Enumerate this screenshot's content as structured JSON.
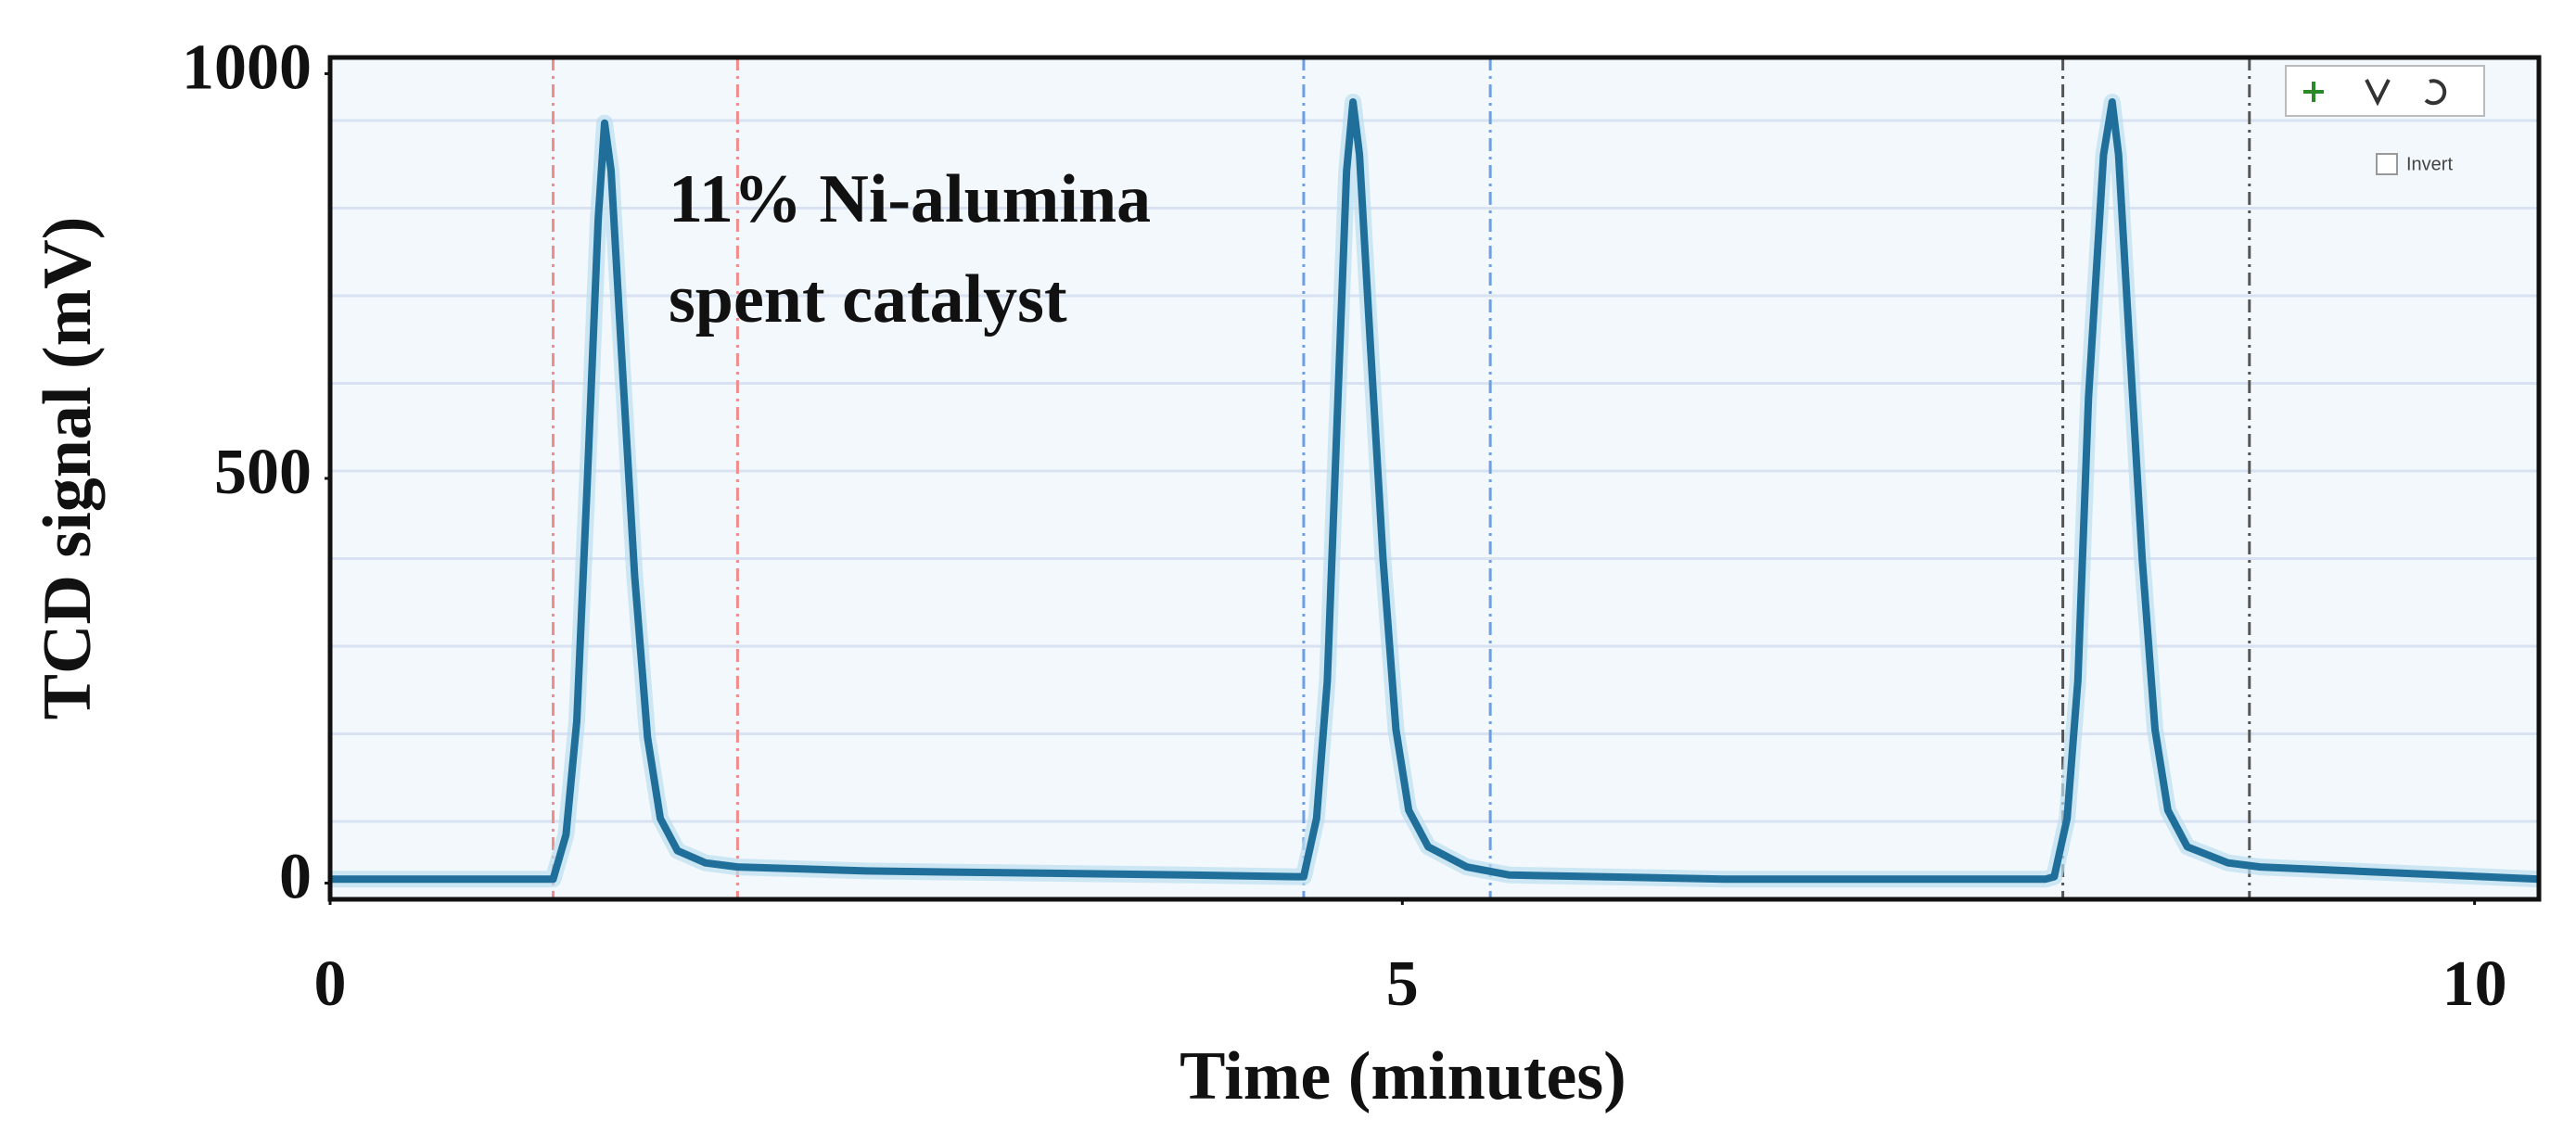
{
  "chart_data": {
    "type": "line",
    "xlabel": "Time (minutes)",
    "ylabel": "TCD signal (mV)",
    "annotation": [
      "11% Ni-alumina",
      "spent catalyst"
    ],
    "ui_label": "Invert",
    "xlim": [
      0,
      10.3
    ],
    "xticks": [
      0,
      5,
      10
    ],
    "ylim": [
      -20,
      1020
    ],
    "yticks": [
      0,
      500,
      1000
    ],
    "vlines": [
      {
        "x": 1.04,
        "color": "#f28b8b"
      },
      {
        "x": 1.9,
        "color": "#f28b8b"
      },
      {
        "x": 4.54,
        "color": "#6f9fe0"
      },
      {
        "x": 5.41,
        "color": "#6f9fe0"
      },
      {
        "x": 8.08,
        "color": "#555555"
      },
      {
        "x": 8.95,
        "color": "#555555"
      }
    ],
    "series": [
      {
        "name": "TCD signal",
        "color": "#1f6f9a",
        "x": [
          0,
          1.0,
          1.04,
          1.1,
          1.15,
          1.2,
          1.25,
          1.28,
          1.31,
          1.36,
          1.42,
          1.48,
          1.54,
          1.62,
          1.75,
          1.9,
          2.5,
          4.0,
          4.5,
          4.54,
          4.6,
          4.65,
          4.7,
          4.74,
          4.77,
          4.8,
          4.85,
          4.91,
          4.97,
          5.03,
          5.12,
          5.3,
          5.5,
          6.5,
          8.0,
          8.04,
          8.1,
          8.15,
          8.2,
          8.27,
          8.31,
          8.34,
          8.39,
          8.45,
          8.51,
          8.57,
          8.66,
          8.85,
          9.0,
          10.3
        ],
        "values": [
          5,
          5,
          5,
          60,
          200,
          500,
          820,
          939,
          880,
          650,
          380,
          180,
          80,
          40,
          25,
          20,
          15,
          10,
          8,
          8,
          80,
          250,
          600,
          880,
          965,
          900,
          670,
          400,
          190,
          90,
          45,
          20,
          10,
          5,
          5,
          8,
          80,
          250,
          600,
          900,
          965,
          900,
          670,
          400,
          190,
          90,
          45,
          25,
          20,
          5
        ]
      }
    ]
  }
}
